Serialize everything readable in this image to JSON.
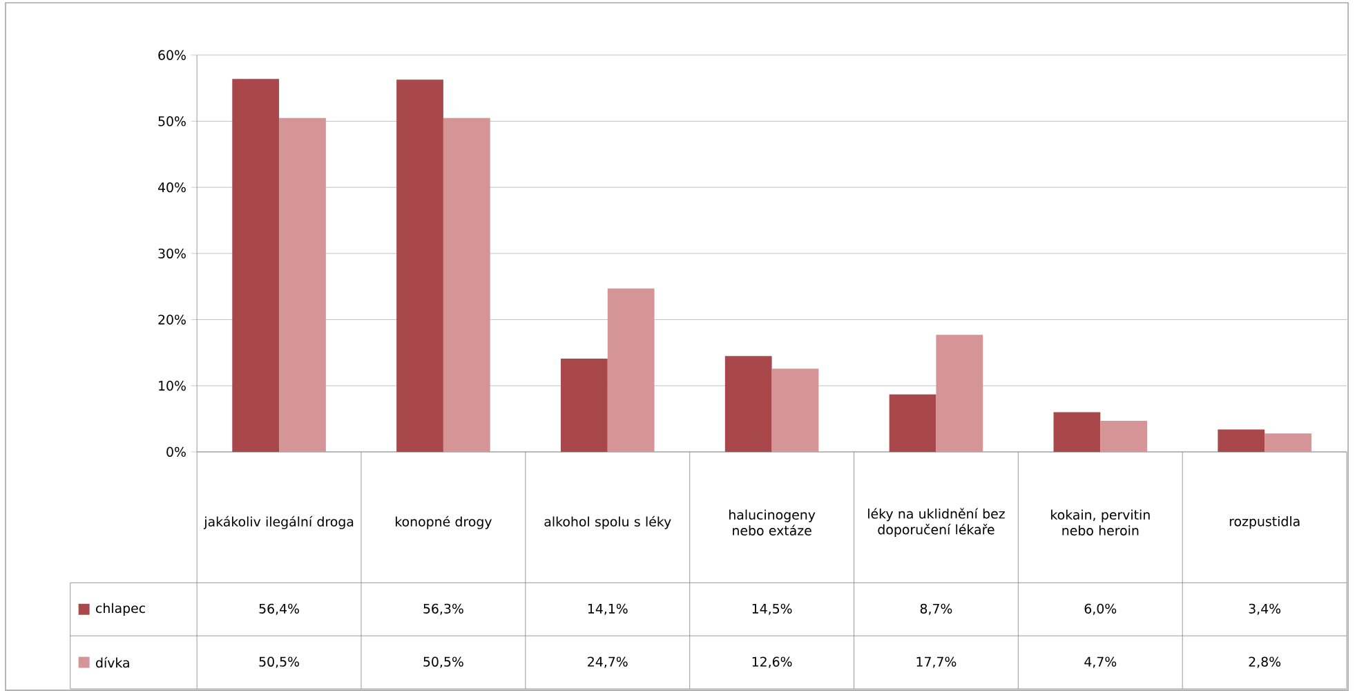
{
  "chart_data": {
    "type": "bar",
    "categories": [
      "jakákoliv ilegální droga",
      "konopné drogy",
      "alkohol spolu s léky",
      "halucinogeny nebo extáze",
      "léky na uklidnění bez doporučení lékaře",
      "kokain, pervitin nebo heroin",
      "rozpustidla"
    ],
    "series": [
      {
        "name": "chlapec",
        "color": "#a9484b",
        "values": [
          56.4,
          56.3,
          14.1,
          14.5,
          8.7,
          6.0,
          3.4
        ],
        "value_labels": [
          "56,4%",
          "56,3%",
          "14,1%",
          "14,5%",
          "8,7%",
          "6,0%",
          "3,4%"
        ]
      },
      {
        "name": "dívka",
        "color": "#d59597",
        "values": [
          50.5,
          50.5,
          24.7,
          12.6,
          17.7,
          4.7,
          2.8
        ],
        "value_labels": [
          "50,5%",
          "50,5%",
          "24,7%",
          "12,6%",
          "17,7%",
          "4,7%",
          "2,8%"
        ]
      }
    ],
    "ylim": [
      0,
      60
    ],
    "yticks": [
      {
        "value": 0,
        "label": "0%"
      },
      {
        "value": 10,
        "label": "10%"
      },
      {
        "value": 20,
        "label": "20%"
      },
      {
        "value": 30,
        "label": "30%"
      },
      {
        "value": 40,
        "label": "40%"
      },
      {
        "value": 50,
        "label": "50%"
      },
      {
        "value": 60,
        "label": "60%"
      }
    ],
    "grid": "y",
    "legend": "bottom"
  }
}
